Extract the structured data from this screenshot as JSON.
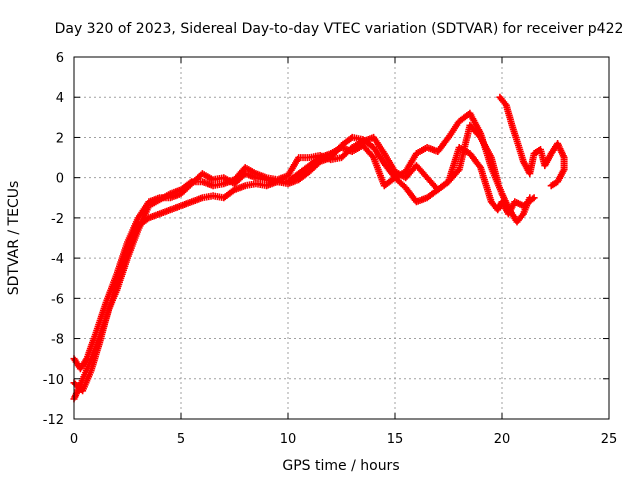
{
  "chart_data": {
    "type": "scatter",
    "title": "Day 320 of 2023, Sidereal Day-to-day VTEC variation (SDTVAR) for receiver p422",
    "xlabel": "GPS time / hours",
    "ylabel": "SDTVAR / TECUs",
    "xlim": [
      0,
      25
    ],
    "ylim": [
      -12,
      6
    ],
    "xticks": [
      0,
      5,
      10,
      15,
      20,
      25
    ],
    "yticks": [
      -12,
      -10,
      -8,
      -6,
      -4,
      -2,
      0,
      2,
      4,
      6
    ],
    "grid": true,
    "marker": "+",
    "series": [
      {
        "name": "p422",
        "color": "#ff0000",
        "tracks": [
          [
            [
              0,
              -9.0
            ],
            [
              0.3,
              -9.5
            ],
            [
              0.6,
              -9.0
            ],
            [
              1.0,
              -7.8
            ],
            [
              1.5,
              -6.2
            ],
            [
              2.0,
              -4.8
            ],
            [
              2.5,
              -3.2
            ],
            [
              3.0,
              -2.0
            ],
            [
              3.5,
              -1.2
            ],
            [
              4.0,
              -1.0
            ],
            [
              4.5,
              -1.0
            ],
            [
              5.0,
              -0.8
            ],
            [
              5.5,
              -0.3
            ],
            [
              6.0,
              0.2
            ],
            [
              6.5,
              -0.1
            ],
            [
              7.0,
              0.0
            ],
            [
              7.5,
              -0.3
            ],
            [
              8.0,
              0.2
            ],
            [
              8.5,
              0.0
            ],
            [
              9.0,
              -0.1
            ],
            [
              9.5,
              -0.2
            ],
            [
              10.0,
              -0.3
            ],
            [
              10.5,
              -0.1
            ],
            [
              11.0,
              0.3
            ],
            [
              11.5,
              0.8
            ],
            [
              12.0,
              1.0
            ],
            [
              12.5,
              1.6
            ],
            [
              13.0,
              2.0
            ],
            [
              13.5,
              1.9
            ],
            [
              14.0,
              1.5
            ],
            [
              14.5,
              0.7
            ],
            [
              15.0,
              0.0
            ],
            [
              15.5,
              0.3
            ],
            [
              16.0,
              1.2
            ],
            [
              16.5,
              1.5
            ],
            [
              17.0,
              1.3
            ],
            [
              17.5,
              2.0
            ],
            [
              18.0,
              2.8
            ],
            [
              18.5,
              3.2
            ],
            [
              19.0,
              2.2
            ],
            [
              19.5,
              0.5
            ],
            [
              20.0,
              -0.8
            ],
            [
              20.3,
              -1.5
            ],
            [
              20.7,
              -2.2
            ],
            [
              21.0,
              -1.8
            ],
            [
              21.3,
              -1.0
            ]
          ],
          [
            [
              0,
              -11.0
            ],
            [
              0.3,
              -10.3
            ],
            [
              0.7,
              -9.3
            ],
            [
              1.0,
              -8.5
            ],
            [
              1.5,
              -7.0
            ],
            [
              2.0,
              -5.2
            ],
            [
              2.5,
              -3.5
            ],
            [
              3.0,
              -2.4
            ],
            [
              3.5,
              -2.0
            ],
            [
              4.0,
              -1.8
            ],
            [
              4.5,
              -1.6
            ],
            [
              5.0,
              -1.4
            ],
            [
              5.5,
              -1.2
            ],
            [
              6.0,
              -1.0
            ],
            [
              6.5,
              -0.9
            ],
            [
              7.0,
              -1.0
            ],
            [
              7.5,
              -0.6
            ],
            [
              8.0,
              -0.4
            ],
            [
              8.5,
              -0.3
            ],
            [
              9.0,
              -0.4
            ],
            [
              9.5,
              -0.2
            ],
            [
              10.0,
              -0.2
            ],
            [
              10.5,
              0.2
            ],
            [
              11.0,
              0.6
            ],
            [
              11.5,
              1.0
            ],
            [
              12.0,
              1.2
            ],
            [
              12.5,
              1.5
            ],
            [
              13.0,
              1.3
            ],
            [
              13.5,
              1.6
            ],
            [
              14.0,
              1.0
            ],
            [
              14.5,
              -0.4
            ],
            [
              15.0,
              0.0
            ],
            [
              15.5,
              -0.5
            ],
            [
              16.0,
              -1.2
            ],
            [
              16.5,
              -1.0
            ],
            [
              17.0,
              -0.6
            ],
            [
              17.5,
              -0.2
            ],
            [
              18.0,
              1.5
            ],
            [
              18.5,
              1.2
            ],
            [
              19.0,
              0.5
            ],
            [
              19.5,
              -1.2
            ],
            [
              19.8,
              -1.6
            ],
            [
              20.0,
              -1.2
            ],
            [
              20.3,
              -1.8
            ],
            [
              20.6,
              -1.2
            ],
            [
              21.0,
              -1.4
            ],
            [
              21.5,
              -1.0
            ]
          ],
          [
            [
              0,
              -10.2
            ],
            [
              0.4,
              -10.6
            ],
            [
              0.8,
              -9.6
            ],
            [
              1.2,
              -8.2
            ],
            [
              1.6,
              -6.6
            ],
            [
              2.0,
              -5.6
            ],
            [
              2.5,
              -4.0
            ],
            [
              3.0,
              -2.6
            ],
            [
              3.5,
              -1.4
            ],
            [
              4.0,
              -1.1
            ],
            [
              4.5,
              -0.8
            ],
            [
              5.0,
              -0.6
            ],
            [
              5.5,
              -0.2
            ],
            [
              6.0,
              -0.2
            ],
            [
              6.5,
              -0.4
            ],
            [
              7.0,
              -0.3
            ],
            [
              7.5,
              -0.1
            ],
            [
              8.0,
              0.5
            ],
            [
              8.5,
              0.2
            ],
            [
              9.0,
              0.0
            ],
            [
              9.5,
              -0.1
            ],
            [
              10.0,
              0.1
            ],
            [
              10.5,
              1.0
            ],
            [
              11.0,
              1.0
            ],
            [
              11.5,
              1.1
            ],
            [
              12.0,
              0.9
            ],
            [
              12.5,
              1.0
            ],
            [
              13.0,
              1.5
            ],
            [
              13.5,
              1.8
            ],
            [
              14.0,
              2.0
            ],
            [
              14.5,
              1.2
            ],
            [
              15.0,
              0.3
            ],
            [
              15.5,
              0.0
            ],
            [
              16.0,
              0.6
            ],
            [
              16.5,
              0.0
            ],
            [
              17.0,
              -0.6
            ],
            [
              17.5,
              -0.2
            ],
            [
              18.0,
              0.4
            ],
            [
              18.5,
              2.6
            ],
            [
              19.0,
              2.0
            ],
            [
              19.5,
              1.0
            ],
            [
              19.8,
              -0.2
            ]
          ],
          [
            [
              19.9,
              4.0
            ],
            [
              20.2,
              3.6
            ],
            [
              20.5,
              2.5
            ],
            [
              20.8,
              1.5
            ],
            [
              21.0,
              0.8
            ],
            [
              21.3,
              0.2
            ],
            [
              21.5,
              1.2
            ],
            [
              21.8,
              1.4
            ],
            [
              22.0,
              0.6
            ],
            [
              22.3,
              1.2
            ],
            [
              22.6,
              1.7
            ],
            [
              22.9,
              1.0
            ],
            [
              22.9,
              0.4
            ],
            [
              22.6,
              -0.2
            ],
            [
              22.3,
              -0.4
            ]
          ]
        ]
      }
    ]
  }
}
